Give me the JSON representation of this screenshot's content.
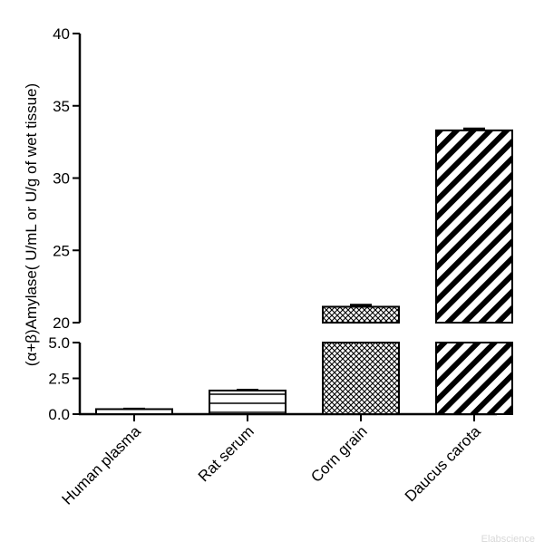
{
  "chart_data": {
    "type": "bar",
    "ylabel": "(α+β)Amylase( U/mL or U/g of wet tissue)",
    "categories": [
      "Human plasma",
      "Rat serum",
      "Corn grain",
      "Daucus carota"
    ],
    "values": [
      0.35,
      1.65,
      21.1,
      33.3
    ],
    "errors": [
      0.02,
      0.04,
      0.12,
      0.12
    ],
    "patterns": [
      "blank",
      "horizontal-lines",
      "crosshatch",
      "diagonal-stripes"
    ],
    "axis": {
      "break": true,
      "lower_range": [
        0,
        5
      ],
      "upper_range": [
        20,
        40
      ],
      "lower_ticks": [
        "0.0",
        "2.5",
        "5.0"
      ],
      "upper_ticks": [
        "20",
        "25",
        "30",
        "35",
        "40"
      ]
    },
    "grid": false,
    "legend": "none"
  },
  "watermark": "Elabscience"
}
